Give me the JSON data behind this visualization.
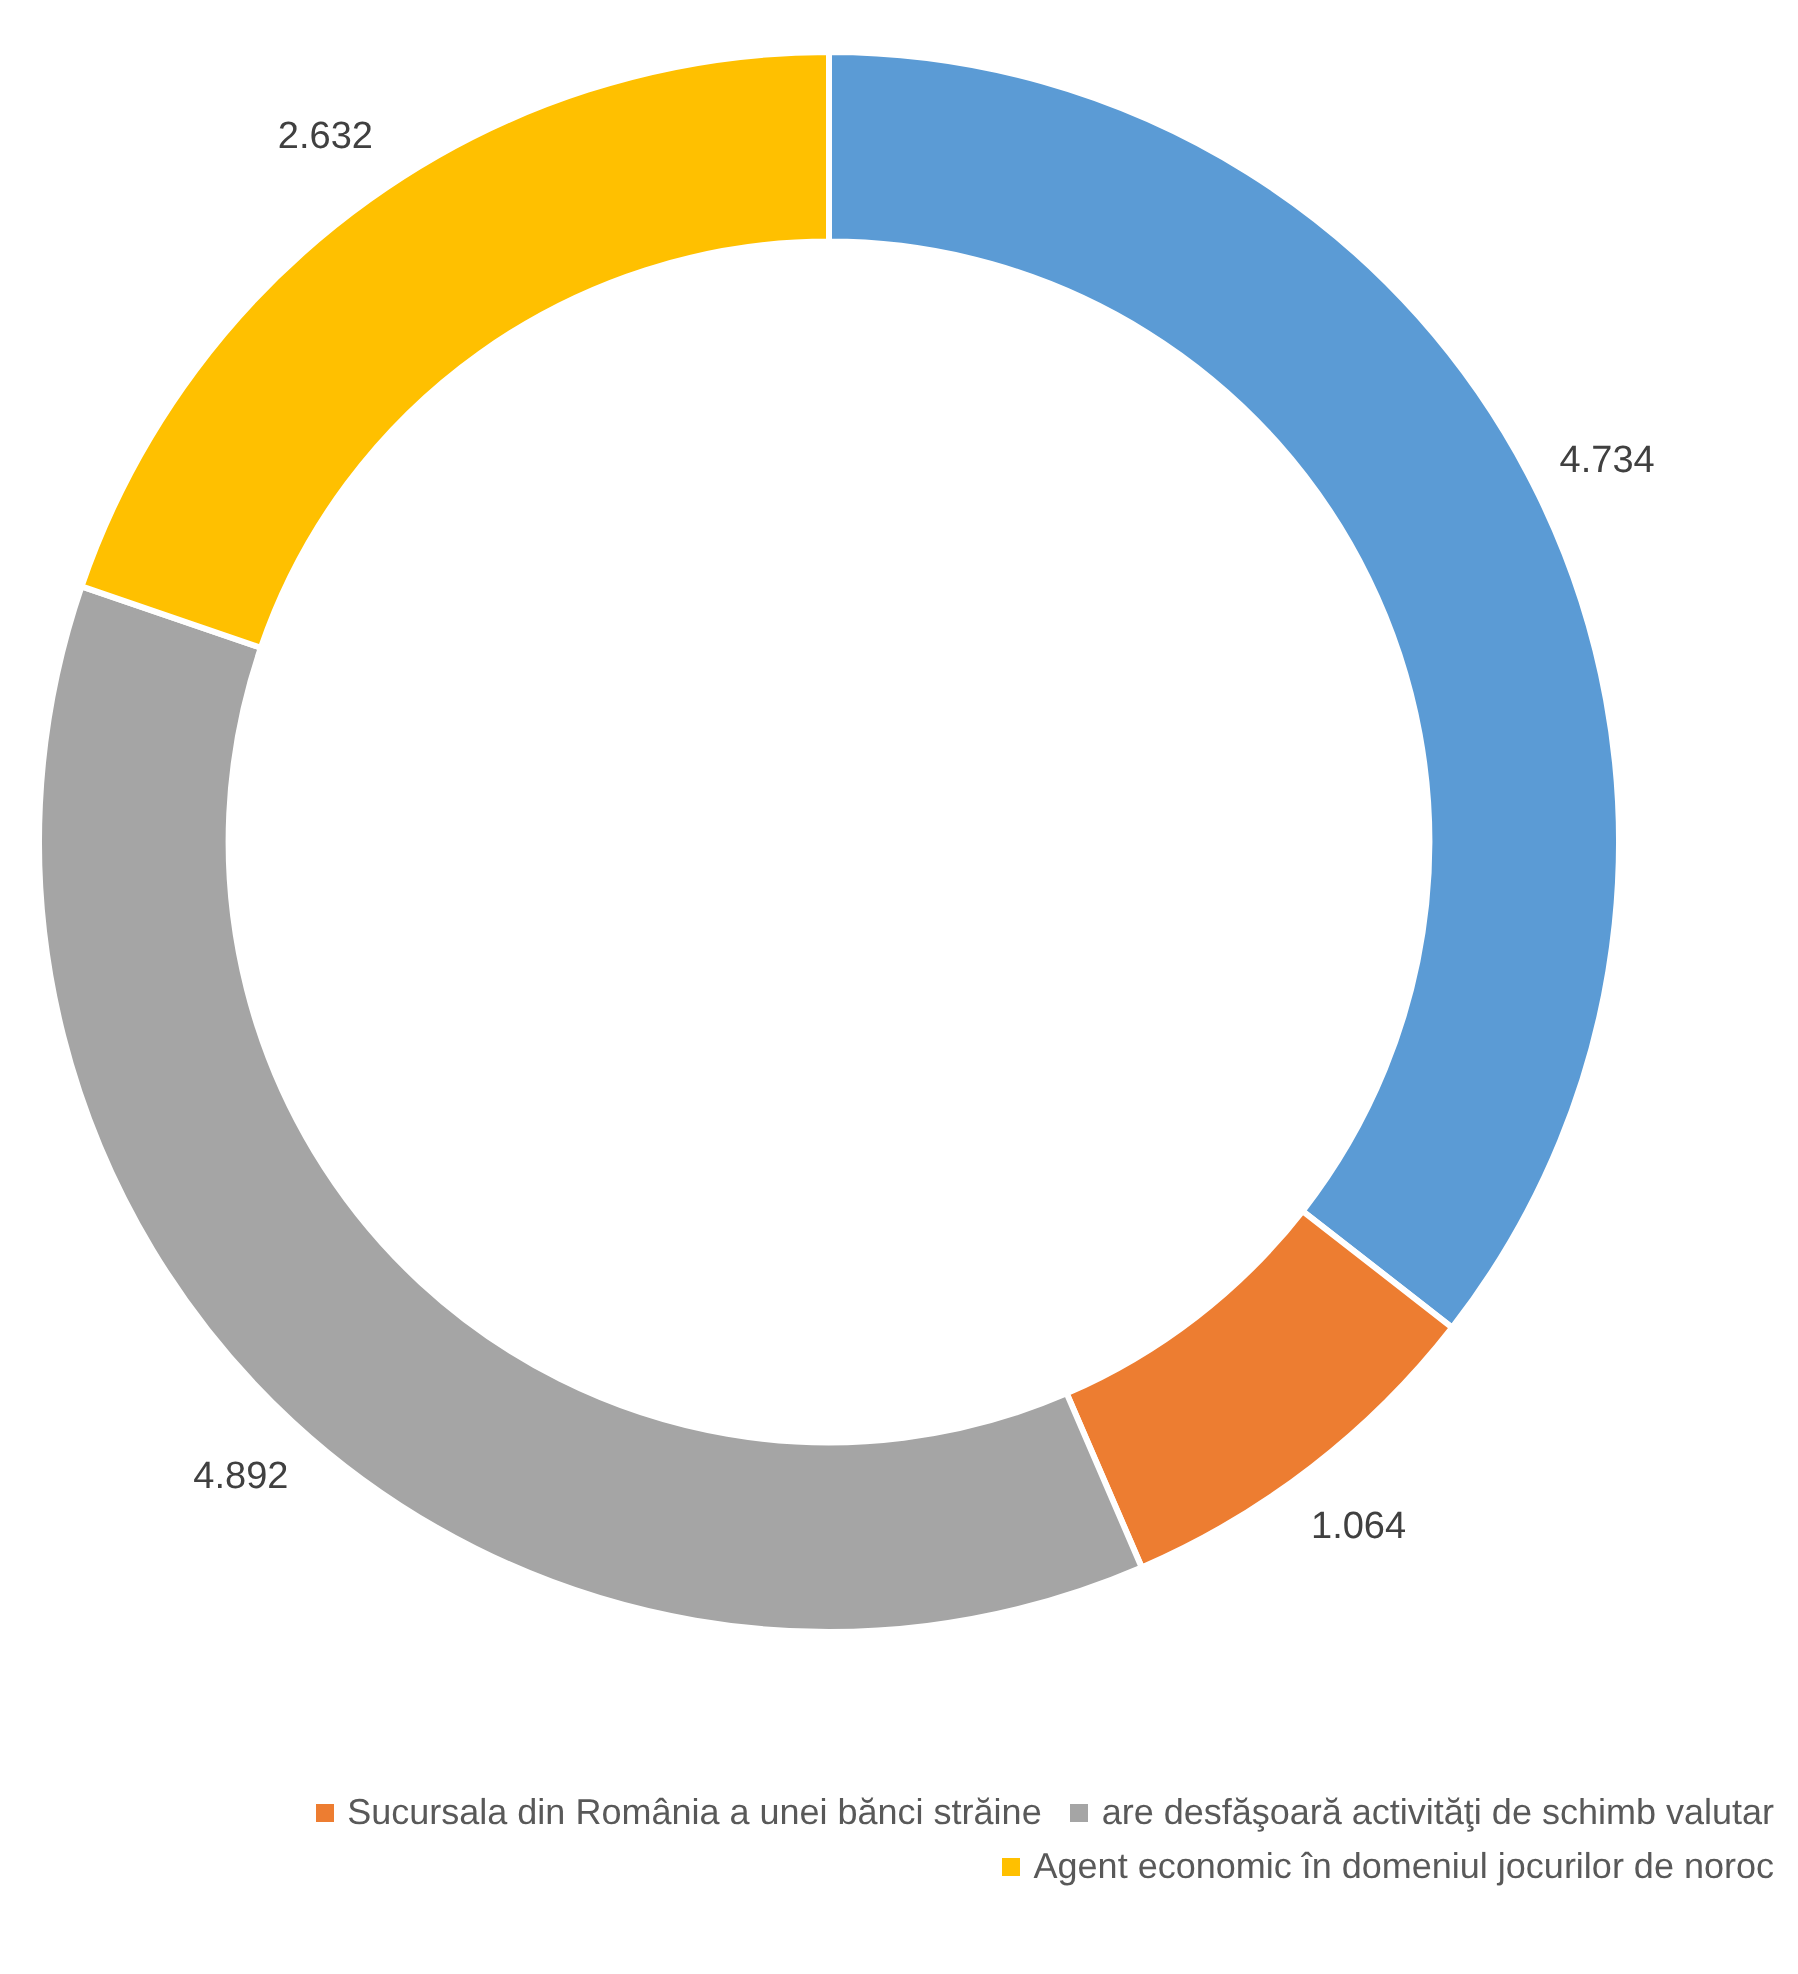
{
  "chart_data": {
    "type": "donut",
    "categories": [
      null,
      "Sucursala din România a unei bănci străine",
      "are desfăşoară activităţi de schimb valutar",
      "Agent economic în domeniul jocurilor de noroc"
    ],
    "values": [
      4.734,
      1.064,
      4.892,
      2.632
    ],
    "colors": [
      "#5b9bd5",
      "#ed7d31",
      "#a5a5a5",
      "#ffc000"
    ],
    "data_labels": true,
    "legend": "bottom"
  }
}
